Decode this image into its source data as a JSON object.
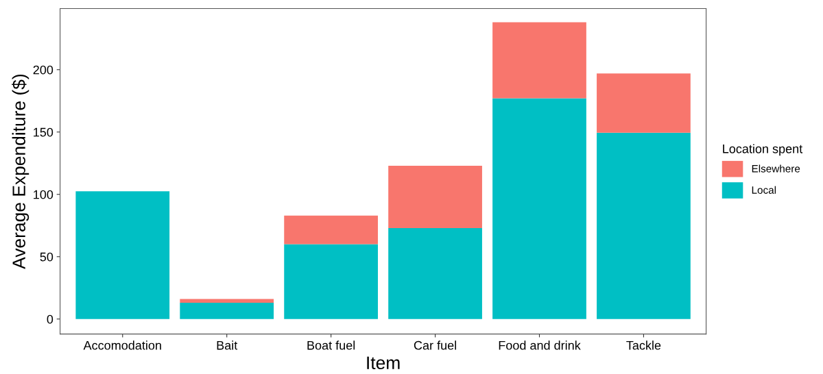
{
  "chart_data": {
    "type": "bar",
    "xlabel": "Item",
    "ylabel": "Average Expenditure ($)",
    "legend_title": "Location spent",
    "stacked": true,
    "legend": "right",
    "grid": false,
    "categories": [
      "Accomodation",
      "Bait",
      "Boat fuel",
      "Car fuel",
      "Food and drink",
      "Tackle"
    ],
    "series": [
      {
        "name": "Local",
        "color": "#00bfc4",
        "values": [
          102.5,
          13,
          60,
          73,
          177,
          149.5
        ]
      },
      {
        "name": "Elsewhere",
        "color": "#f8766d",
        "values": [
          0,
          3,
          23,
          50,
          61,
          47.5
        ]
      }
    ],
    "ylim": [
      -12,
      249
    ],
    "yticks": [
      0,
      50,
      100,
      150,
      200
    ]
  }
}
